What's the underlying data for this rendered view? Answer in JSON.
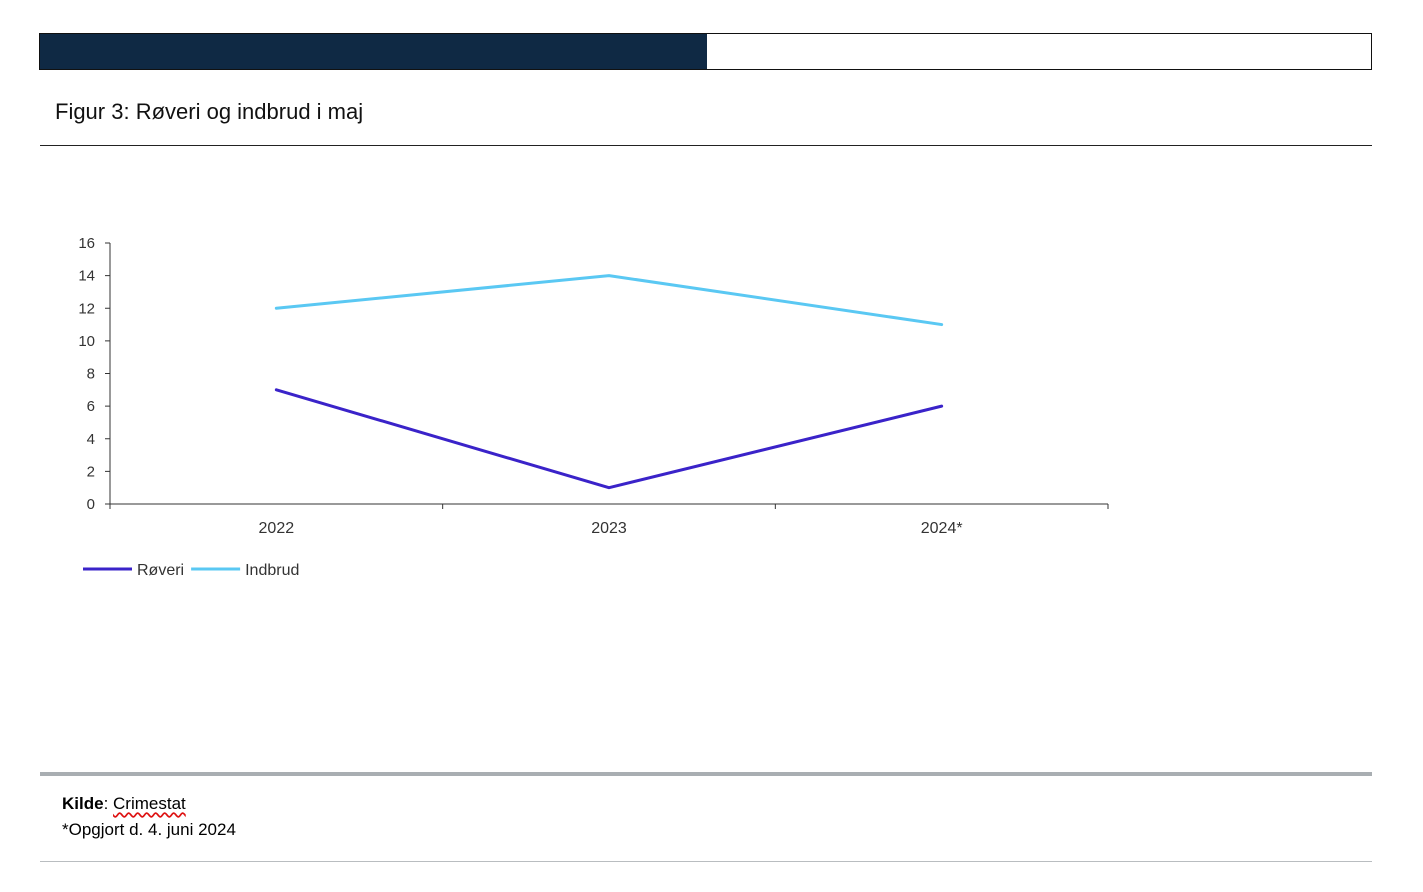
{
  "figure": {
    "title": "Figur 3: Røveri og indbrud i maj"
  },
  "chart_data": {
    "type": "line",
    "categories": [
      "2022",
      "2023",
      "2024*"
    ],
    "series": [
      {
        "name": "Røveri",
        "values": [
          7,
          1,
          6
        ],
        "color": "#3a23c9"
      },
      {
        "name": "Indbrud",
        "values": [
          12,
          14,
          11
        ],
        "color": "#5ac8f3"
      }
    ],
    "ylim": [
      0,
      16
    ],
    "yticks": [
      0,
      2,
      4,
      6,
      8,
      10,
      12,
      14,
      16
    ],
    "grid": false,
    "legend": "bottom-left"
  },
  "source": {
    "label": "Kilde",
    "separator": ": ",
    "value": "Crimestat",
    "note": "*Opgjort d. 4. juni 2024"
  }
}
